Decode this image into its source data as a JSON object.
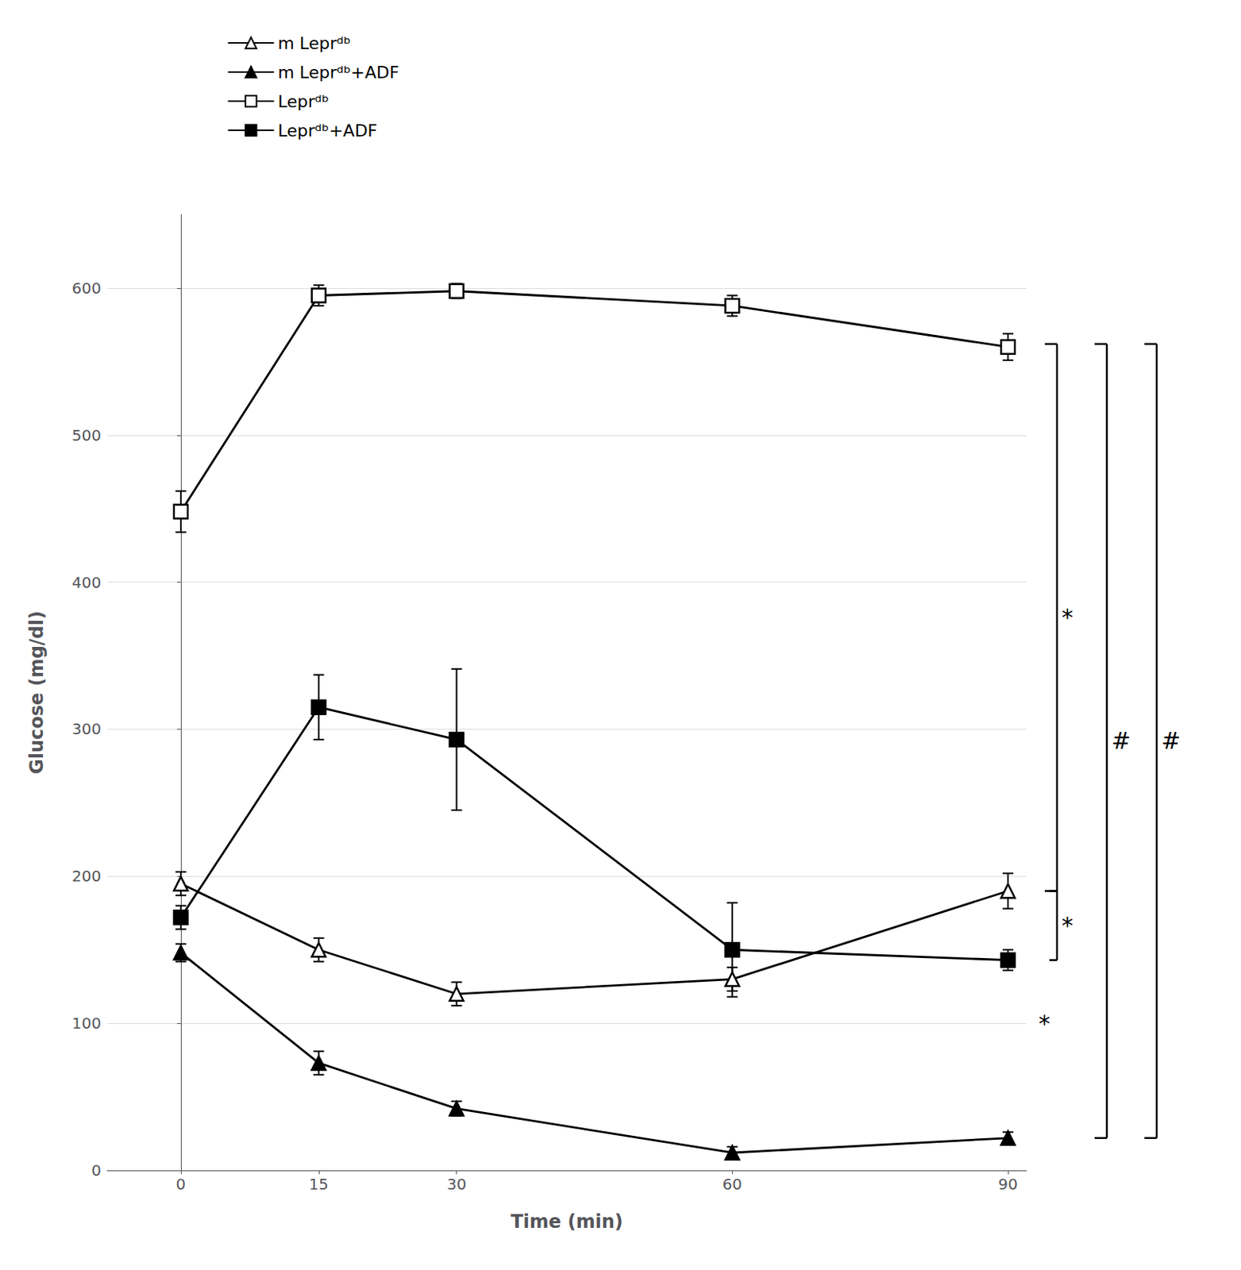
{
  "chart_data": {
    "type": "line",
    "x": [
      0,
      15,
      30,
      60,
      90
    ],
    "xlabel": "Time (min)",
    "ylabel": "Glucose (mg/dl)",
    "xlim": [
      -8,
      92
    ],
    "xticks": [
      0,
      15,
      30,
      60,
      90
    ],
    "ylim": [
      0,
      650
    ],
    "yticks": [
      0,
      100,
      200,
      300,
      400,
      500,
      600
    ],
    "grid": "y",
    "legend": "top",
    "series": [
      {
        "name": "m Leprᵈᵇ",
        "color": "#000000",
        "marker": "triangle-open",
        "values": [
          195,
          150,
          120,
          130,
          190
        ],
        "errors": [
          8,
          8,
          8,
          8,
          12
        ]
      },
      {
        "name": "m Leprᵈᵇ+ADF",
        "color": "#000000",
        "marker": "triangle",
        "values": [
          148,
          73,
          42,
          12,
          22
        ],
        "errors": [
          6,
          8,
          5,
          4,
          4
        ]
      },
      {
        "name": "Leprᵈᵇ",
        "color": "#000000",
        "marker": "square-open",
        "values": [
          448,
          595,
          598,
          588,
          560
        ],
        "errors": [
          14,
          7,
          5,
          7,
          9
        ]
      },
      {
        "name": "Leprᵈᵇ+ADF",
        "color": "#000000",
        "marker": "square",
        "values": [
          172,
          315,
          293,
          150,
          143
        ],
        "errors": [
          8,
          22,
          48,
          32,
          7
        ]
      }
    ],
    "annotations": [
      {
        "text": "*",
        "y": [
          562,
          190
        ]
      },
      {
        "text": "#",
        "y": [
          562,
          22
        ]
      },
      {
        "text": "#",
        "y": [
          562,
          22
        ]
      },
      {
        "text": "*",
        "y": [
          190,
          143
        ]
      },
      {
        "text": "*",
        "y": [
          100
        ]
      }
    ]
  }
}
